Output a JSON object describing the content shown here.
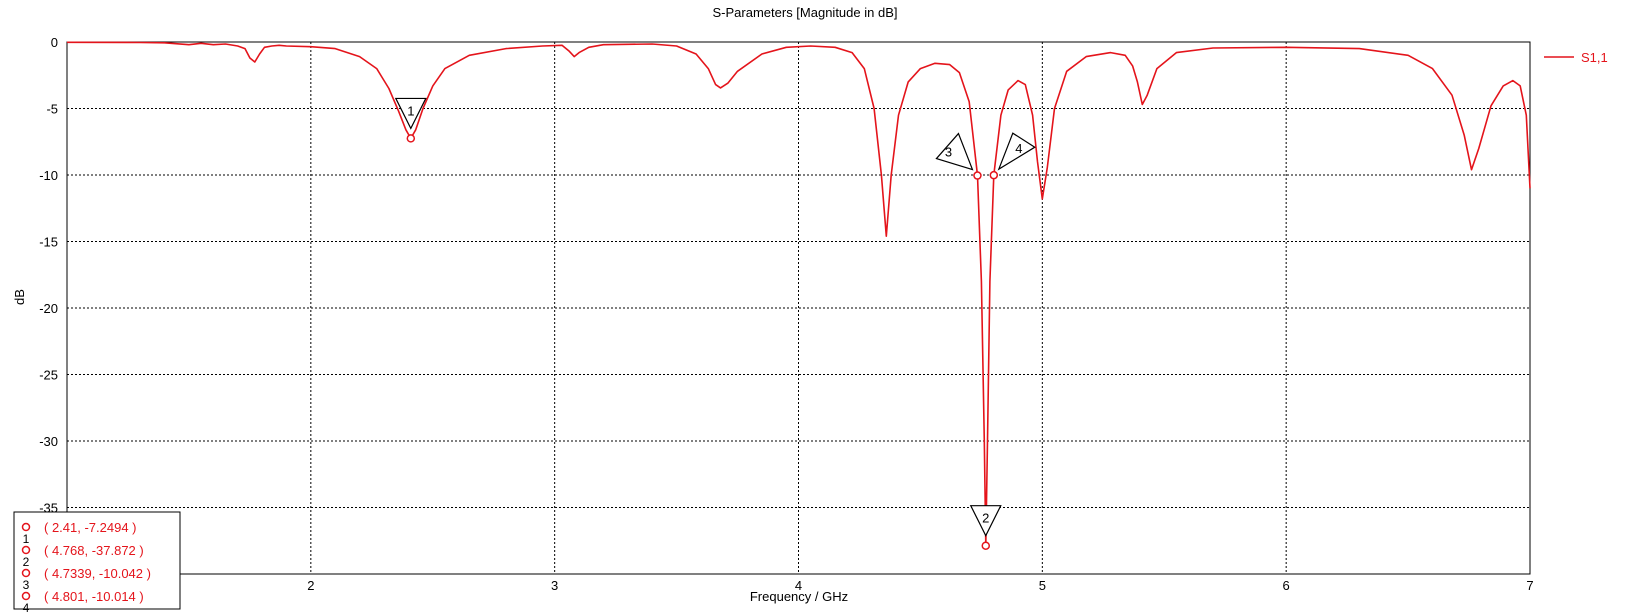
{
  "chart_data": {
    "type": "line",
    "title": "S-Parameters [Magnitude in dB]",
    "xlabel": "Frequency / GHz",
    "ylabel": "dB",
    "xlim": [
      1,
      7
    ],
    "ylim": [
      -40,
      0
    ],
    "x_ticks": [
      "2",
      "3",
      "4",
      "5",
      "6",
      "7"
    ],
    "y_ticks": [
      "0",
      "-5",
      "-10",
      "-15",
      "-20",
      "-25",
      "-30",
      "-35"
    ],
    "grid": true,
    "legend_position": "top-right",
    "colors": {
      "series": "#e4141b"
    },
    "series": [
      {
        "name": "S1,1",
        "points": [
          [
            1.0,
            -0.02
          ],
          [
            1.3,
            -0.04
          ],
          [
            1.4,
            -0.06
          ],
          [
            1.5,
            -0.2
          ],
          [
            1.55,
            -0.1
          ],
          [
            1.6,
            -0.2
          ],
          [
            1.65,
            -0.15
          ],
          [
            1.7,
            -0.3
          ],
          [
            1.73,
            -0.5
          ],
          [
            1.75,
            -1.2
          ],
          [
            1.77,
            -1.5
          ],
          [
            1.79,
            -0.9
          ],
          [
            1.81,
            -0.4
          ],
          [
            1.84,
            -0.3
          ],
          [
            1.87,
            -0.25
          ],
          [
            1.9,
            -0.3
          ],
          [
            2.0,
            -0.35
          ],
          [
            2.1,
            -0.5
          ],
          [
            2.2,
            -1.1
          ],
          [
            2.27,
            -2.0
          ],
          [
            2.32,
            -3.5
          ],
          [
            2.36,
            -5.2
          ],
          [
            2.39,
            -6.6
          ],
          [
            2.41,
            -7.25
          ],
          [
            2.43,
            -6.6
          ],
          [
            2.46,
            -5.0
          ],
          [
            2.5,
            -3.3
          ],
          [
            2.55,
            -2.0
          ],
          [
            2.65,
            -1.0
          ],
          [
            2.8,
            -0.5
          ],
          [
            2.95,
            -0.3
          ],
          [
            3.03,
            -0.25
          ],
          [
            3.06,
            -0.7
          ],
          [
            3.08,
            -1.1
          ],
          [
            3.1,
            -0.8
          ],
          [
            3.14,
            -0.4
          ],
          [
            3.2,
            -0.2
          ],
          [
            3.4,
            -0.15
          ],
          [
            3.5,
            -0.3
          ],
          [
            3.58,
            -0.9
          ],
          [
            3.63,
            -2.0
          ],
          [
            3.66,
            -3.2
          ],
          [
            3.68,
            -3.45
          ],
          [
            3.71,
            -3.1
          ],
          [
            3.75,
            -2.2
          ],
          [
            3.85,
            -0.9
          ],
          [
            3.95,
            -0.4
          ],
          [
            4.05,
            -0.3
          ],
          [
            4.15,
            -0.4
          ],
          [
            4.22,
            -0.8
          ],
          [
            4.27,
            -2.0
          ],
          [
            4.31,
            -5.0
          ],
          [
            4.34,
            -10.0
          ],
          [
            4.36,
            -14.6
          ],
          [
            4.38,
            -10.0
          ],
          [
            4.41,
            -5.5
          ],
          [
            4.45,
            -3.0
          ],
          [
            4.5,
            -2.0
          ],
          [
            4.56,
            -1.6
          ],
          [
            4.62,
            -1.7
          ],
          [
            4.66,
            -2.3
          ],
          [
            4.7,
            -4.5
          ],
          [
            4.734,
            -10.04
          ],
          [
            4.75,
            -18.0
          ],
          [
            4.762,
            -30.0
          ],
          [
            4.768,
            -37.87
          ],
          [
            4.775,
            -30.0
          ],
          [
            4.785,
            -18.0
          ],
          [
            4.801,
            -10.01
          ],
          [
            4.83,
            -5.5
          ],
          [
            4.86,
            -3.6
          ],
          [
            4.9,
            -2.9
          ],
          [
            4.93,
            -3.2
          ],
          [
            4.96,
            -5.5
          ],
          [
            4.98,
            -9.0
          ],
          [
            5.0,
            -11.8
          ],
          [
            5.02,
            -9.5
          ],
          [
            5.05,
            -5.0
          ],
          [
            5.1,
            -2.2
          ],
          [
            5.18,
            -1.1
          ],
          [
            5.28,
            -0.8
          ],
          [
            5.34,
            -1.0
          ],
          [
            5.37,
            -1.8
          ],
          [
            5.39,
            -3.0
          ],
          [
            5.41,
            -4.7
          ],
          [
            5.43,
            -4.0
          ],
          [
            5.47,
            -2.0
          ],
          [
            5.55,
            -0.8
          ],
          [
            5.7,
            -0.45
          ],
          [
            6.0,
            -0.4
          ],
          [
            6.3,
            -0.5
          ],
          [
            6.5,
            -1.0
          ],
          [
            6.6,
            -2.0
          ],
          [
            6.68,
            -4.0
          ],
          [
            6.73,
            -7.0
          ],
          [
            6.76,
            -9.6
          ],
          [
            6.79,
            -8.0
          ],
          [
            6.84,
            -4.8
          ],
          [
            6.89,
            -3.3
          ],
          [
            6.93,
            -2.9
          ],
          [
            6.96,
            -3.3
          ],
          [
            6.985,
            -5.5
          ],
          [
            7.0,
            -11.0
          ]
        ]
      }
    ],
    "markers": [
      {
        "id": "1",
        "x": 2.41,
        "y": -7.2494,
        "label": "( 2.41, -7.2494 )"
      },
      {
        "id": "2",
        "x": 4.768,
        "y": -37.872,
        "label": "( 4.768, -37.872 )"
      },
      {
        "id": "3",
        "x": 4.7339,
        "y": -10.042,
        "label": "( 4.7339, -10.042 )"
      },
      {
        "id": "4",
        "x": 4.801,
        "y": -10.014,
        "label": "( 4.801, -10.014 )"
      }
    ]
  }
}
